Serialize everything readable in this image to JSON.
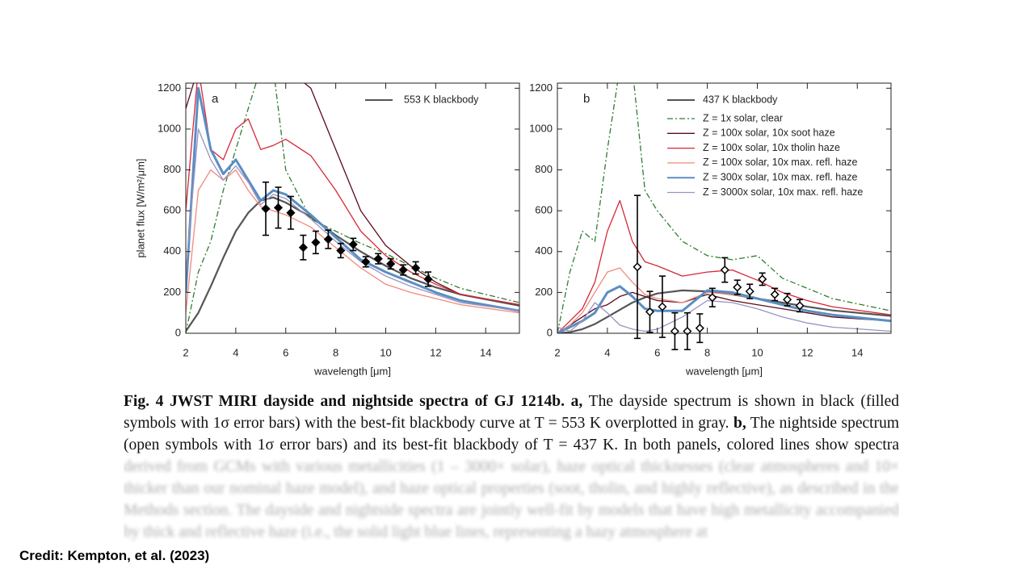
{
  "chart_data": [
    {
      "type": "line",
      "annotation": "a",
      "ylabel": "planet flux [W/m²/μm]",
      "xlabel": "wavelength [μm]",
      "xlim": [
        2,
        15.35
      ],
      "ylim": [
        0,
        1225
      ],
      "xticks": [
        2,
        4,
        6,
        8,
        10,
        12,
        14
      ],
      "yticks": [
        0,
        200,
        400,
        600,
        800,
        1000,
        1200
      ],
      "legend": "upper right",
      "x": [
        2,
        2.5,
        3,
        3.5,
        4,
        4.5,
        5,
        5.5,
        6,
        7,
        8,
        9,
        10,
        11,
        12,
        13,
        15.35
      ],
      "series": [
        {
          "name": "553 K blackbody",
          "color": "#555555",
          "linewidth": 2.2,
          "dash": "solid",
          "values": [
            10,
            100,
            230,
            370,
            500,
            590,
            650,
            665,
            640,
            570,
            480,
            400,
            330,
            270,
            225,
            190,
            135
          ]
        },
        {
          "color": "#2e7d32",
          "linewidth": 1.3,
          "dash": "dashdot",
          "values": [
            0,
            300,
            450,
            700,
            900,
            1100,
            1300,
            1300,
            800,
            560,
            500,
            440,
            390,
            330,
            270,
            220,
            150
          ]
        },
        {
          "color": "#5a0a1a",
          "linewidth": 1.3,
          "dash": "solid",
          "values": [
            1100,
            1300,
            1300,
            1300,
            1300,
            1300,
            1300,
            1300,
            1300,
            1200,
            900,
            600,
            430,
            330,
            250,
            190,
            140
          ]
        },
        {
          "color": "#d62839",
          "linewidth": 1.3,
          "dash": "solid",
          "values": [
            600,
            1300,
            900,
            850,
            1000,
            1050,
            900,
            920,
            950,
            870,
            700,
            500,
            380,
            300,
            240,
            190,
            140
          ]
        },
        {
          "color": "#f08a7a",
          "linewidth": 1.3,
          "dash": "solid",
          "values": [
            100,
            700,
            800,
            750,
            800,
            700,
            620,
            600,
            580,
            520,
            420,
            320,
            240,
            200,
            170,
            140,
            100
          ]
        },
        {
          "color": "#5b8ec2",
          "linewidth": 3,
          "dash": "solid",
          "values": [
            200,
            1200,
            900,
            780,
            850,
            750,
            650,
            700,
            680,
            580,
            470,
            360,
            300,
            250,
            200,
            160,
            110
          ]
        },
        {
          "color": "#9a92c0",
          "linewidth": 1.3,
          "dash": "solid",
          "values": [
            300,
            1000,
            850,
            750,
            820,
            740,
            630,
            680,
            660,
            560,
            450,
            350,
            280,
            230,
            190,
            150,
            110
          ]
        }
      ],
      "points": {
        "marker": "filled",
        "x": [
          5.2,
          5.7,
          6.2,
          6.7,
          7.2,
          7.7,
          8.2,
          8.7,
          9.2,
          9.7,
          10.2,
          10.7,
          11.2,
          11.7
        ],
        "values": [
          610,
          615,
          590,
          420,
          445,
          460,
          405,
          435,
          350,
          365,
          340,
          310,
          320,
          265
        ],
        "errors": [
          130,
          100,
          80,
          60,
          55,
          45,
          35,
          30,
          25,
          25,
          25,
          25,
          30,
          35
        ]
      }
    },
    {
      "type": "line",
      "annotation": "b",
      "xlabel": "wavelength [μm]",
      "xlim": [
        2,
        15.35
      ],
      "ylim": [
        0,
        1225
      ],
      "xticks": [
        2,
        4,
        6,
        8,
        10,
        12,
        14
      ],
      "yticks": [
        0,
        200,
        400,
        600,
        800,
        1000,
        1200
      ],
      "legend": "upper right",
      "x": [
        2,
        2.5,
        3,
        3.5,
        4,
        4.5,
        5,
        5.5,
        6,
        7,
        8,
        9,
        10,
        11,
        12,
        13,
        15.35
      ],
      "series": [
        {
          "name": "437 K blackbody",
          "color": "#555555",
          "linewidth": 2.2,
          "dash": "solid",
          "values": [
            0,
            5,
            20,
            45,
            80,
            115,
            150,
            175,
            195,
            210,
            205,
            190,
            170,
            150,
            130,
            112,
            85
          ]
        },
        {
          "name": "Z = 1x solar, clear",
          "color": "#2e7d32",
          "linewidth": 1.3,
          "dash": "dashdot",
          "values": [
            0,
            300,
            500,
            450,
            900,
            1300,
            1300,
            700,
            600,
            450,
            380,
            360,
            380,
            270,
            220,
            170,
            110
          ]
        },
        {
          "name": "Z = 100x solar, 10x soot haze",
          "color": "#5a0a1a",
          "linewidth": 1.3,
          "dash": "solid",
          "values": [
            0,
            40,
            80,
            120,
            140,
            180,
            200,
            180,
            160,
            150,
            190,
            160,
            140,
            120,
            100,
            80,
            60
          ]
        },
        {
          "name": "Z = 100x solar, 10x tholin haze",
          "color": "#d62839",
          "linewidth": 1.3,
          "dash": "solid",
          "values": [
            0,
            60,
            120,
            250,
            500,
            650,
            450,
            350,
            330,
            280,
            300,
            310,
            260,
            200,
            160,
            130,
            90
          ]
        },
        {
          "name": "Z = 100x solar, 10x max. refl. haze",
          "color": "#f08a7a",
          "linewidth": 1.3,
          "dash": "solid",
          "values": [
            0,
            40,
            100,
            200,
            300,
            320,
            250,
            190,
            170,
            150,
            200,
            190,
            170,
            140,
            110,
            90,
            60
          ]
        },
        {
          "name": "Z = 300x solar, 10x max. refl. haze",
          "color": "#5b8ec2",
          "linewidth": 3,
          "dash": "solid",
          "values": [
            0,
            30,
            60,
            100,
            200,
            230,
            180,
            120,
            110,
            110,
            210,
            200,
            170,
            140,
            110,
            90,
            60
          ]
        },
        {
          "name": "Z = 3000x solar, 10x max. refl. haze",
          "color": "#9a92c0",
          "linewidth": 1.3,
          "dash": "solid",
          "values": [
            30,
            10,
            60,
            150,
            100,
            40,
            20,
            10,
            20,
            80,
            160,
            150,
            120,
            80,
            50,
            30,
            10
          ]
        }
      ],
      "points": {
        "marker": "open",
        "x": [
          5.2,
          5.7,
          6.2,
          6.7,
          7.2,
          7.7,
          8.2,
          8.7,
          9.2,
          9.7,
          10.2,
          10.7,
          11.2,
          11.7
        ],
        "values": [
          325,
          105,
          130,
          10,
          10,
          25,
          175,
          310,
          225,
          205,
          265,
          190,
          165,
          135
        ],
        "errors": [
          350,
          100,
          150,
          90,
          90,
          70,
          45,
          60,
          35,
          35,
          30,
          30,
          30,
          30
        ]
      }
    }
  ],
  "caption": {
    "segments": [
      {
        "text": "Fig. 4  JWST MIRI dayside and nightside spectra of GJ 1214b. a,",
        "bold": true
      },
      {
        "text": " The dayside spectrum is shown in black (filled symbols with 1σ error bars) with the best-fit blackbody curve at T = 553 K overplotted in gray. ",
        "bold": false
      },
      {
        "text": "b,",
        "bold": true
      },
      {
        "text": " The nightside spectrum (open symbols with 1σ error bars) and its best-fit blackbody of T = 437 K. In both panels, colored lines show spectra ",
        "bold": false
      }
    ],
    "faded": "derived from GCMs with various metallicities (1 – 3000× solar), haze optical thicknesses (clear atmospheres and 10× thicker than our nominal haze model), and haze optical properties (soot, tholin, and highly reflective), as described in the Methods section. The dayside and nightside spectra are jointly well-fit by models that have high metallicity accompanied by thick and reflective haze (i.e., the solid light blue lines, representing a hazy atmosphere at"
  },
  "credit": "Credit: Kempton, et al. (2023)"
}
